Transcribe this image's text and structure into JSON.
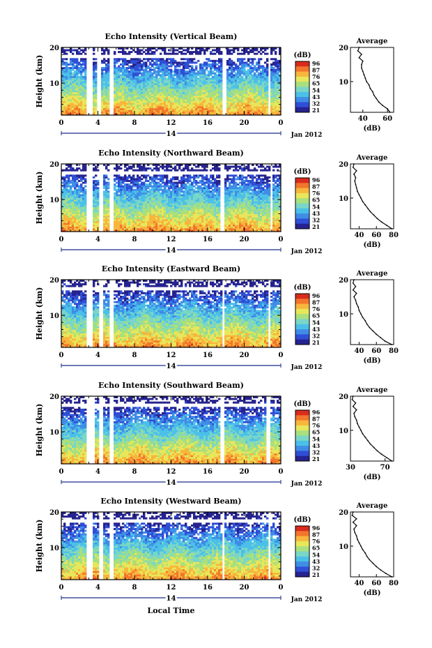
{
  "figure": {
    "date_label": "Jan 2012",
    "xlabel": "Local Time",
    "colorbar_unit": "(dB)",
    "colorbar_ticks": [
      "96",
      "87",
      "76",
      "65",
      "54",
      "43",
      "32",
      "21"
    ],
    "colorscale": [
      "#26238f",
      "#2f4fd6",
      "#3f8de6",
      "#4bc0e8",
      "#7ad6c6",
      "#a8e07d",
      "#e8e65a",
      "#f7b63c",
      "#f2762c",
      "#d92b1e"
    ]
  },
  "chart_data": [
    {
      "type": "heatmap",
      "title": "Echo Intensity (Vertical Beam)",
      "ylabel": "Height (km)",
      "x_ticks": [
        "0",
        "4",
        "8",
        "12",
        "16",
        "20",
        "0"
      ],
      "x_center_label": "14",
      "y_ticks": [
        "20",
        "10"
      ],
      "xlim": [
        0,
        24
      ],
      "ylim": [
        1,
        20
      ],
      "gaps_hours": [
        [
          2.8,
          3.4
        ],
        [
          4.0,
          4.4
        ],
        [
          5.2,
          5.8
        ],
        [
          17.6,
          18.0
        ],
        [
          22.6,
          22.9
        ]
      ],
      "profile": {
        "title": "Average",
        "xlabel": "(dB)",
        "x_ticks": [
          "40",
          "60"
        ],
        "y_ticks": [
          "20",
          "10"
        ],
        "xlim": [
          30,
          65
        ],
        "ylim": [
          1,
          20
        ],
        "height_km": [
          1,
          2,
          3,
          4,
          5,
          6,
          7,
          8,
          9,
          10,
          11,
          12,
          13,
          14,
          15,
          16,
          17,
          18,
          19,
          20
        ],
        "db": [
          62,
          60,
          56,
          53,
          51,
          49,
          48,
          46,
          45,
          43,
          42,
          41,
          40,
          39,
          39,
          40,
          37,
          39,
          36,
          37
        ]
      }
    },
    {
      "type": "heatmap",
      "title": "Echo Intensity (Northward Beam)",
      "ylabel": "Height (km)",
      "x_ticks": [
        "0",
        "4",
        "8",
        "12",
        "16",
        "20",
        "0"
      ],
      "x_center_label": "14",
      "y_ticks": [
        "20",
        "10"
      ],
      "xlim": [
        0,
        24
      ],
      "ylim": [
        1,
        20
      ],
      "gaps_hours": [
        [
          2.8,
          3.5
        ],
        [
          4.2,
          4.5
        ],
        [
          5.3,
          5.8
        ],
        [
          17.4,
          17.9
        ],
        [
          22.8,
          23.1
        ]
      ],
      "profile": {
        "title": "Average",
        "xlabel": "(dB)",
        "x_ticks": [
          "40",
          "60",
          "80"
        ],
        "y_ticks": [
          "20",
          "10"
        ],
        "xlim": [
          30,
          80
        ],
        "ylim": [
          1,
          20
        ],
        "height_km": [
          1,
          2,
          3,
          4,
          5,
          6,
          7,
          8,
          9,
          10,
          11,
          12,
          13,
          14,
          15,
          16,
          17,
          18,
          19,
          20
        ],
        "db": [
          78,
          72,
          66,
          61,
          57,
          53,
          50,
          47,
          44,
          42,
          40,
          38,
          37,
          36,
          35,
          36,
          34,
          37,
          33,
          34
        ]
      }
    },
    {
      "type": "heatmap",
      "title": "Echo Intensity (Eastward Beam)",
      "ylabel": "Height (km)",
      "x_ticks": [
        "0",
        "4",
        "8",
        "12",
        "16",
        "20",
        "0"
      ],
      "x_center_label": "14",
      "y_ticks": [
        "20",
        "10"
      ],
      "xlim": [
        0,
        24
      ],
      "ylim": [
        1,
        20
      ],
      "gaps_hours": [
        [
          2.8,
          3.4
        ],
        [
          4.1,
          4.5
        ],
        [
          5.2,
          5.7
        ],
        [
          17.5,
          17.9
        ],
        [
          22.6,
          22.9
        ]
      ],
      "profile": {
        "title": "Average",
        "xlabel": "(dB)",
        "x_ticks": [
          "40",
          "60",
          "80"
        ],
        "y_ticks": [
          "20",
          "10"
        ],
        "xlim": [
          30,
          80
        ],
        "ylim": [
          1,
          20
        ],
        "height_km": [
          1,
          2,
          3,
          4,
          5,
          6,
          7,
          8,
          9,
          10,
          11,
          12,
          13,
          14,
          15,
          16,
          17,
          18,
          19,
          20
        ],
        "db": [
          78,
          70,
          65,
          60,
          56,
          52,
          49,
          47,
          44,
          42,
          40,
          39,
          37,
          36,
          34,
          37,
          33,
          36,
          33,
          34
        ]
      }
    },
    {
      "type": "heatmap",
      "title": "Echo Intensity (Southward Beam)",
      "ylabel": "Height (km)",
      "x_ticks": [
        "0",
        "4",
        "8",
        "12",
        "16",
        "20",
        "0"
      ],
      "x_center_label": "14",
      "y_ticks": [
        "20",
        "10"
      ],
      "xlim": [
        0,
        24
      ],
      "ylim": [
        1,
        20
      ],
      "gaps_hours": [
        [
          2.8,
          3.6
        ],
        [
          4.2,
          4.6
        ],
        [
          5.3,
          5.8
        ],
        [
          17.3,
          17.8
        ],
        [
          22.5,
          22.8
        ]
      ],
      "profile": {
        "title": "Average",
        "xlabel": "(dB)",
        "x_ticks": [
          "30",
          "70"
        ],
        "y_ticks": [
          "20",
          "10"
        ],
        "xlim": [
          30,
          80
        ],
        "ylim": [
          1,
          20
        ],
        "height_km": [
          1,
          2,
          3,
          4,
          5,
          6,
          7,
          8,
          9,
          10,
          11,
          12,
          13,
          14,
          15,
          16,
          17,
          18,
          19,
          20
        ],
        "db": [
          78,
          72,
          66,
          61,
          57,
          53,
          50,
          47,
          44,
          42,
          40,
          38,
          37,
          35,
          34,
          37,
          33,
          36,
          32,
          33
        ]
      }
    },
    {
      "type": "heatmap",
      "title": "Echo Intensity (Westward Beam)",
      "ylabel": "Height (km)",
      "x_ticks": [
        "0",
        "4",
        "8",
        "12",
        "16",
        "20",
        "0"
      ],
      "x_center_label": "14",
      "y_ticks": [
        "20",
        "10"
      ],
      "xlim": [
        0,
        24
      ],
      "ylim": [
        1,
        20
      ],
      "gaps_hours": [
        [
          2.8,
          3.4
        ],
        [
          4.1,
          4.5
        ],
        [
          5.2,
          5.7
        ],
        [
          17.5,
          17.9
        ],
        [
          22.6,
          22.9
        ]
      ],
      "profile": {
        "title": "Average",
        "xlabel": "(dB)",
        "x_ticks": [
          "40",
          "60",
          "80"
        ],
        "y_ticks": [
          "20",
          "10"
        ],
        "xlim": [
          30,
          80
        ],
        "ylim": [
          1,
          20
        ],
        "height_km": [
          1,
          2,
          3,
          4,
          5,
          6,
          7,
          8,
          9,
          10,
          11,
          12,
          13,
          14,
          15,
          16,
          17,
          18,
          19,
          20
        ],
        "db": [
          78,
          71,
          65,
          60,
          56,
          52,
          49,
          47,
          44,
          42,
          40,
          38,
          37,
          35,
          34,
          37,
          33,
          37,
          32,
          33
        ]
      }
    }
  ]
}
